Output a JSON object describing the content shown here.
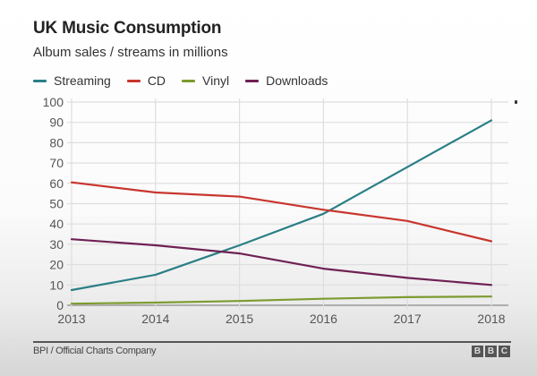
{
  "header": {
    "title": "UK Music Consumption",
    "subtitle": "Album sales / streams in millions"
  },
  "footer": {
    "source": "BPI / Official Charts Company",
    "logo_letters": [
      "B",
      "B",
      "C"
    ]
  },
  "chart_data": {
    "type": "line",
    "title": "UK Music Consumption",
    "subtitle": "Album sales / streams in millions",
    "xlabel": "",
    "ylabel": "",
    "x": [
      "2013",
      "2014",
      "2015",
      "2016",
      "2017",
      "2018"
    ],
    "ylim": [
      0,
      100
    ],
    "yticks": [
      0,
      10,
      20,
      30,
      40,
      50,
      60,
      70,
      80,
      90,
      100
    ],
    "grid": true,
    "legend_position": "top-left",
    "series": [
      {
        "name": "Streaming",
        "color": "#2a7f86",
        "values": [
          7.5,
          15,
          29.5,
          45,
          68,
          91
        ]
      },
      {
        "name": "CD",
        "color": "#c8362e",
        "values": [
          60.5,
          55.5,
          53.5,
          47,
          41.5,
          31.5
        ]
      },
      {
        "name": "Vinyl",
        "color": "#7d9b30",
        "values": [
          0.8,
          1.3,
          2.1,
          3.2,
          4,
          4.3
        ]
      },
      {
        "name": "Downloads",
        "color": "#6f2154",
        "values": [
          32.5,
          29.5,
          25.5,
          18,
          13.5,
          10
        ]
      }
    ]
  }
}
